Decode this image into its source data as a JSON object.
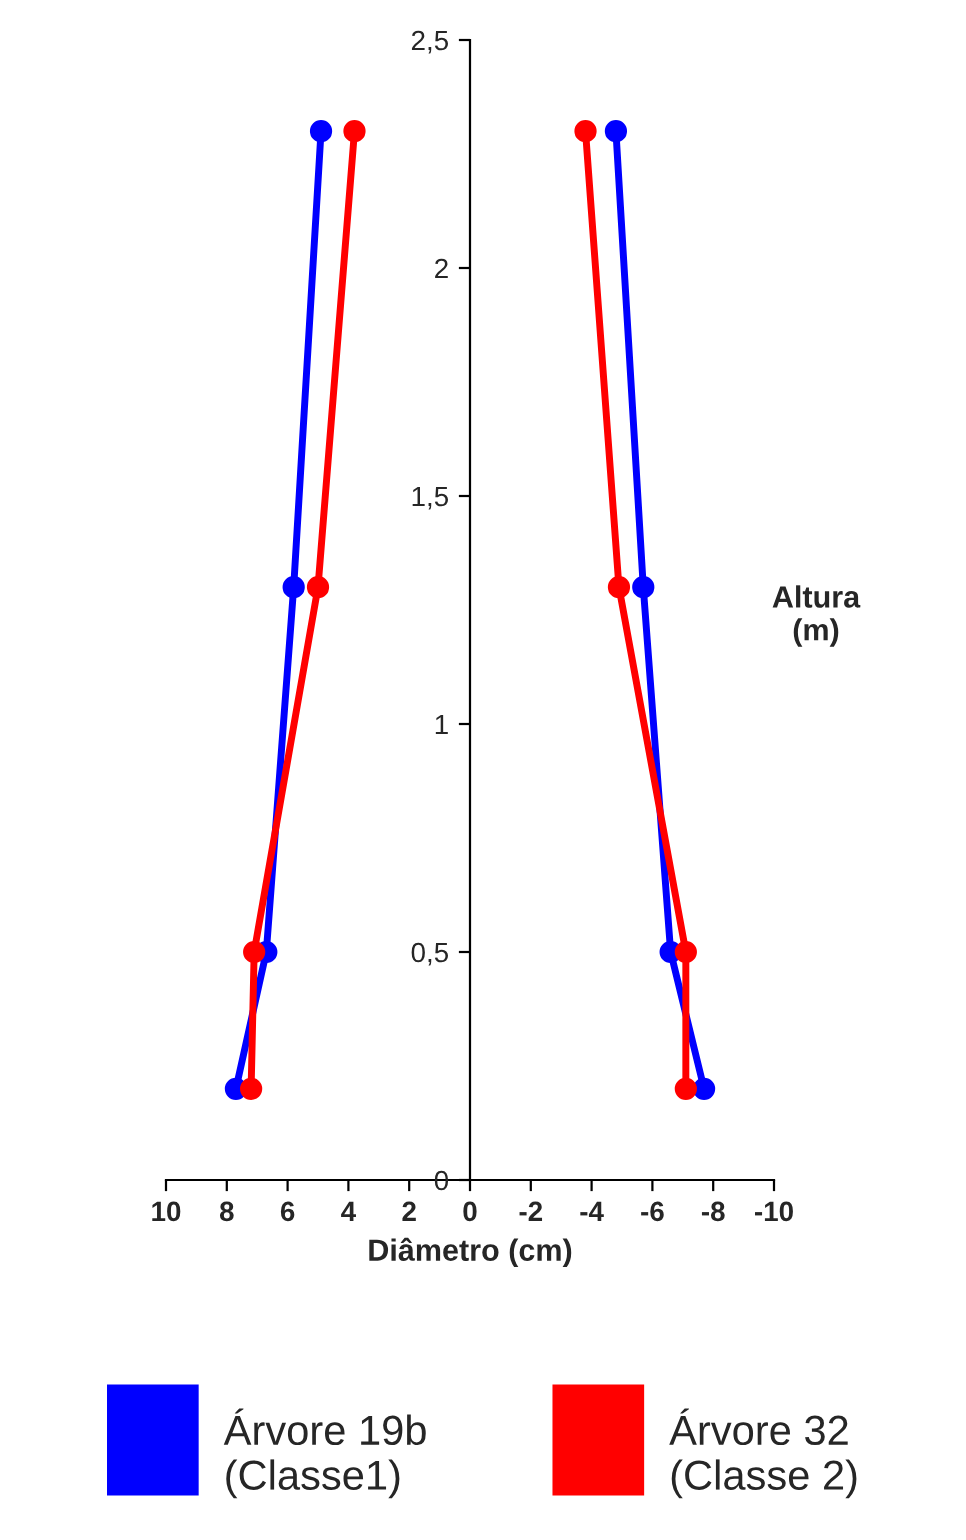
{
  "chart_data": {
    "type": "line",
    "xlabel": "Diâmetro (cm)",
    "ylabel": "Altura\n(m)",
    "xlim": [
      10,
      -10
    ],
    "xticks": [
      10,
      8,
      6,
      4,
      2,
      0,
      -2,
      -4,
      -6,
      -8,
      -10
    ],
    "ylim": [
      0,
      2.5
    ],
    "yticks": [
      {
        "value": 0,
        "label": "0"
      },
      {
        "value": 0.5,
        "label": "0,5"
      },
      {
        "value": 1,
        "label": "1"
      },
      {
        "value": 1.5,
        "label": "1,5"
      },
      {
        "value": 2,
        "label": "2"
      },
      {
        "value": 2.5,
        "label": "2,5"
      }
    ],
    "marker": "circle",
    "line_style": "solid",
    "grid": false,
    "legend": "bottom",
    "series": [
      {
        "name": "Árvore 19b\n(Classe1)",
        "color": "#0000ff",
        "x": [
          7.7,
          6.7,
          5.8,
          4.9
        ],
        "values": [
          0.2,
          0.5,
          1.3,
          2.3
        ]
      },
      {
        "color": "#0000ff",
        "x": [
          -7.7,
          -6.6,
          -5.7,
          -4.8
        ],
        "values": [
          0.2,
          0.5,
          1.3,
          2.3
        ]
      },
      {
        "name": "Árvore 32\n(Classe 2)",
        "color": "#ff0000",
        "x": [
          7.2,
          7.1,
          5.0,
          3.8
        ],
        "values": [
          0.2,
          0.5,
          1.3,
          2.3
        ]
      },
      {
        "color": "#ff0000",
        "x": [
          -7.1,
          -7.1,
          -4.9,
          -3.8
        ],
        "values": [
          0.2,
          0.5,
          1.3,
          2.3
        ]
      }
    ]
  }
}
